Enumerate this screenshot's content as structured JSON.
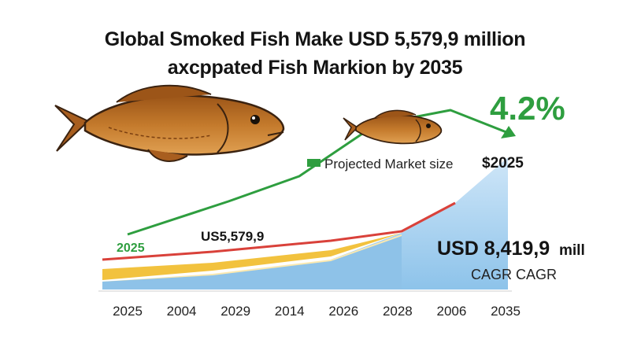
{
  "title_lines": [
    "Global Smoked Fish Make USD 5,579,9 million",
    "axcppated Fish Markion by 2035"
  ],
  "chart_data": {
    "type": "area",
    "categories": [
      "2025",
      "2004",
      "2029",
      "2014",
      "2026",
      "2028",
      "2006",
      "2035"
    ],
    "growth_line_start_label": "2025",
    "growth_line_start_color": "#2e9e3f",
    "cagr_value": "4.2%",
    "cagr_color": "#2e9e3f",
    "legend_label": "Projected Market size",
    "annotations": {
      "mid_value": "US5,579,9",
      "end_year": "$2025",
      "big_value": "USD 8,419,9",
      "big_value_unit": "mill",
      "cagr_text": "CAGR CAGR"
    },
    "colors": {
      "growth_line": "#2e9e3f",
      "red_line": "#d9413a",
      "yellow_band": "#f2c23e",
      "light_band": "#fbe9b0",
      "blue_band": "#8ec2e8",
      "projection_area": "#b9dcf5"
    },
    "legend_position": "center",
    "grid": false
  },
  "icons": [
    "fish-icon-large",
    "fish-icon-small"
  ]
}
